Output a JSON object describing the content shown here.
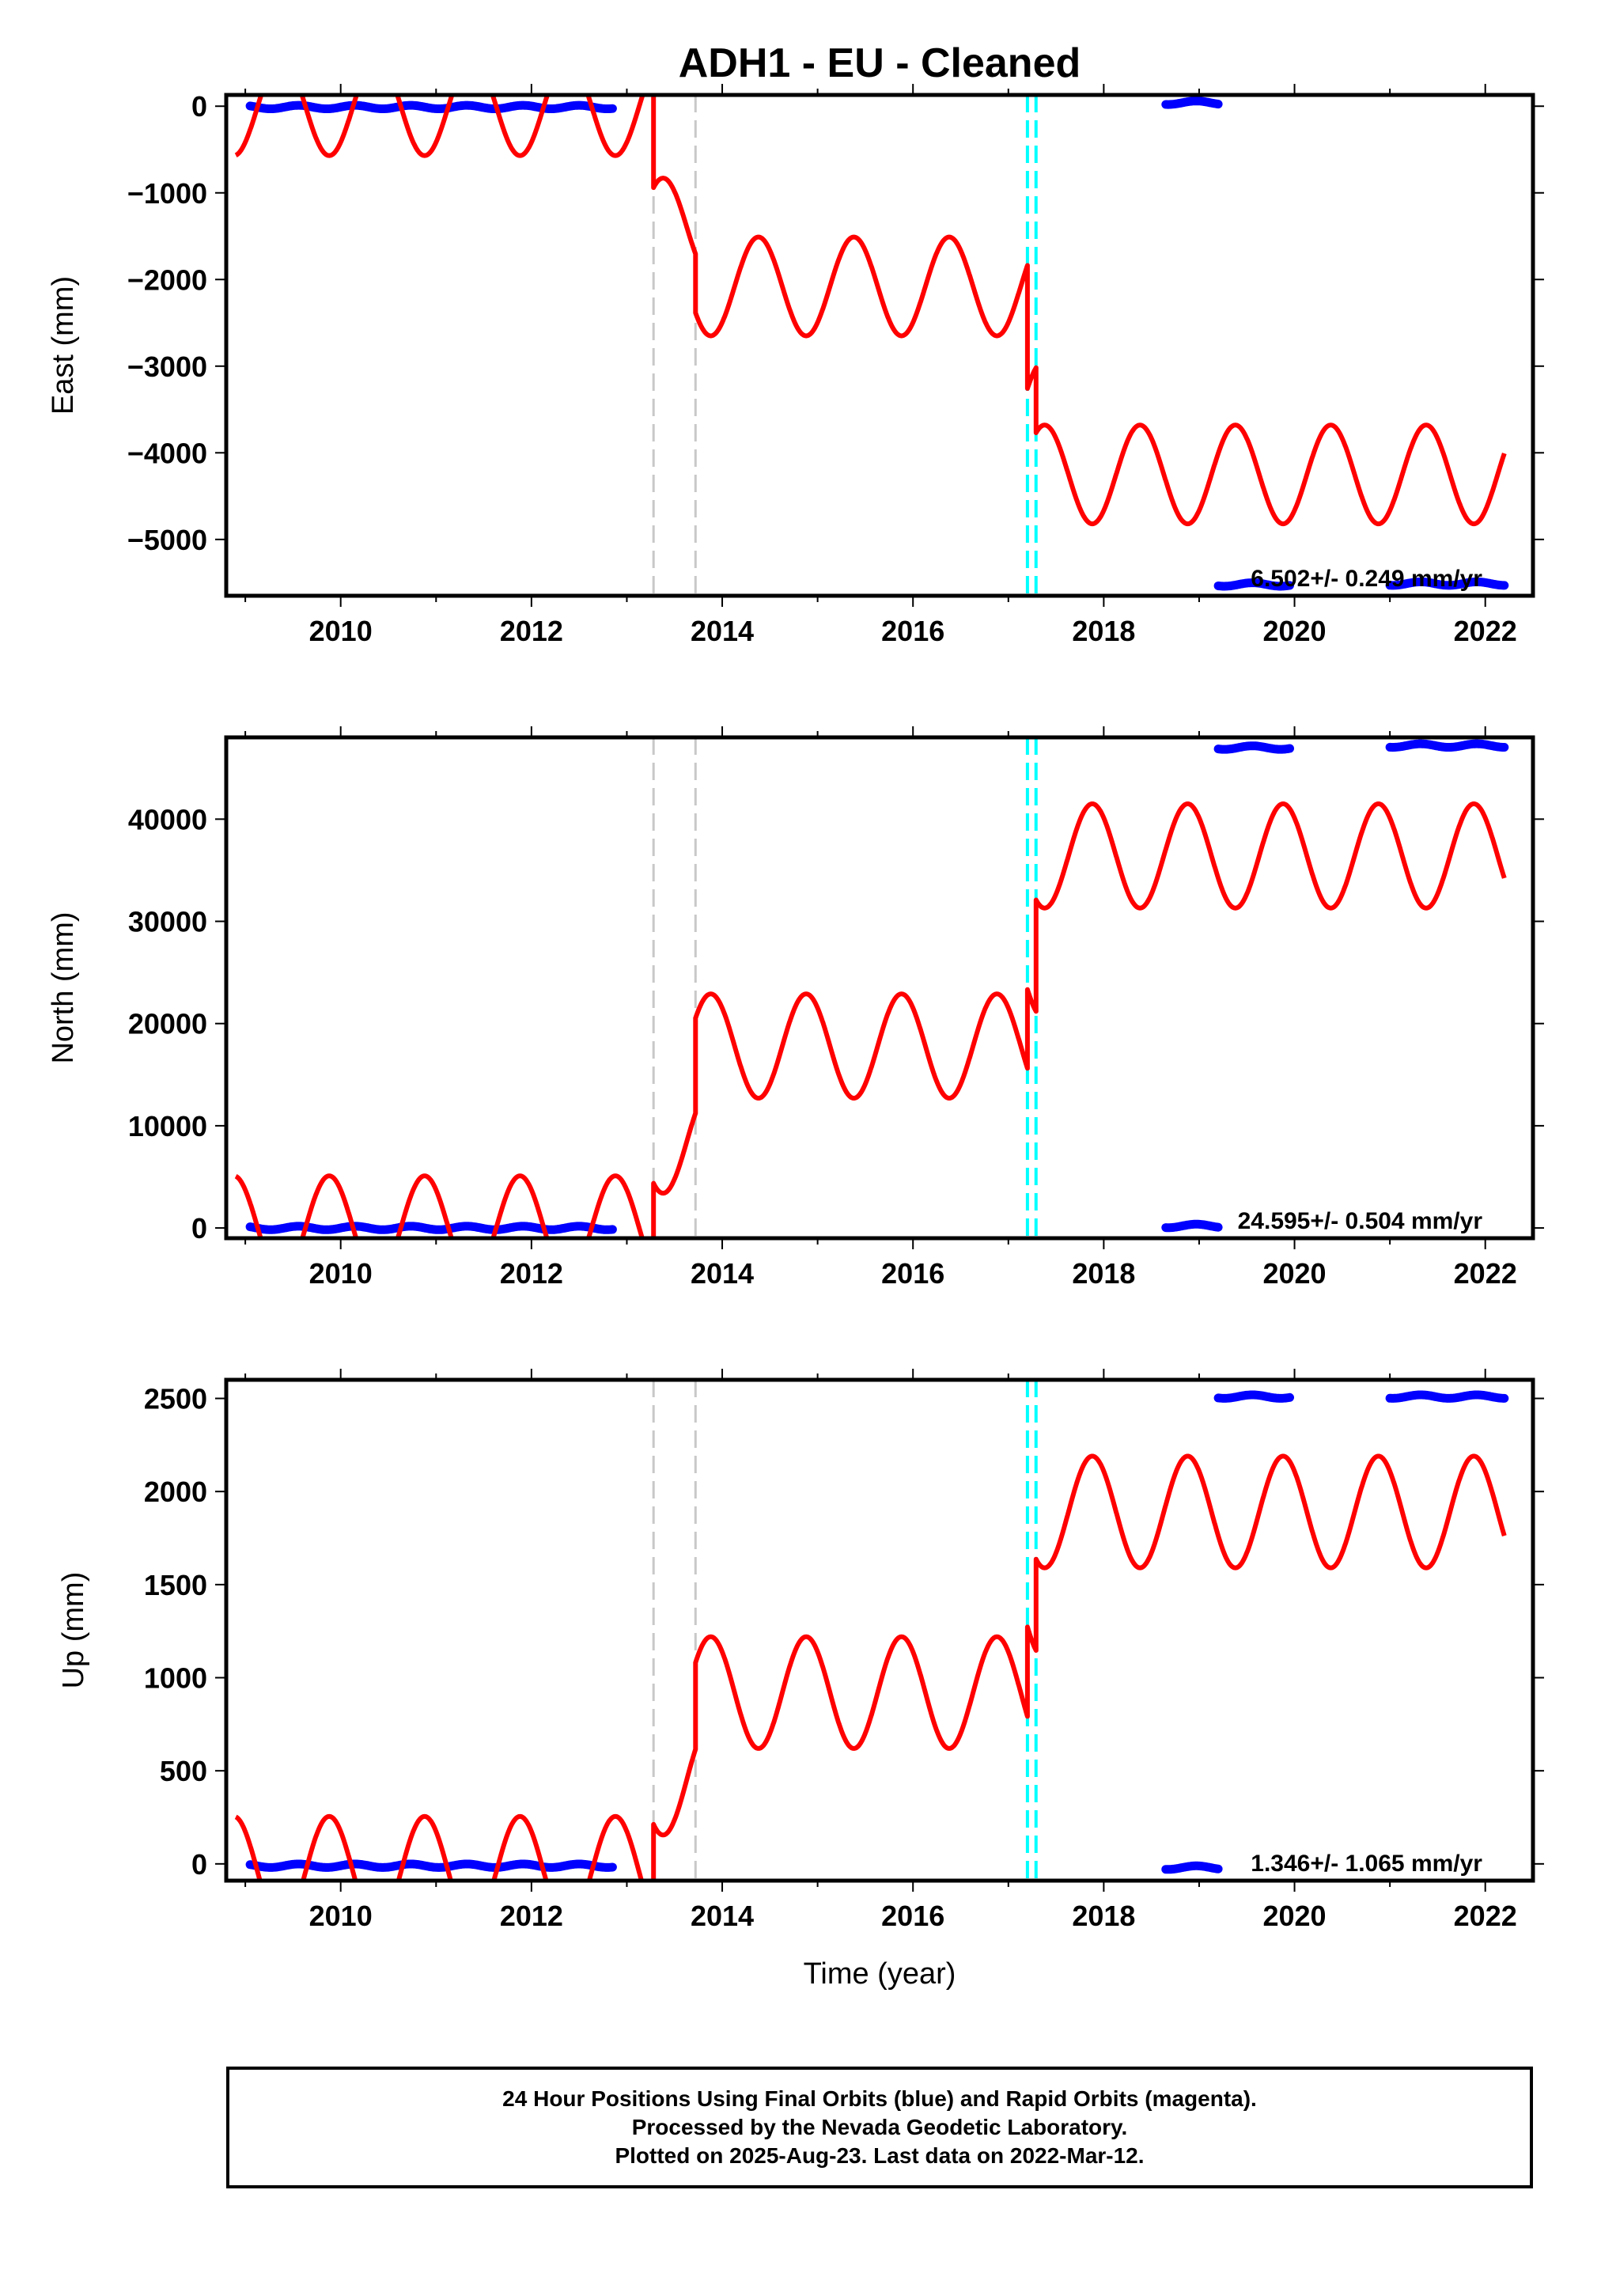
{
  "title": "ADH1  - EU - Cleaned",
  "colors": {
    "model": "#ff0000",
    "data": "#0000ff",
    "offset_equipment": "#c8c8c8",
    "offset_earthquake": "#00ffff",
    "frame": "#000000"
  },
  "footer": {
    "line1": "24 Hour Positions Using Final Orbits (blue) and Rapid Orbits (magenta).",
    "line2": "Processed by the Nevada Geodetic Laboratory.",
    "line3": "Plotted on 2025-Aug-23. Last data on 2022-Mar-12."
  },
  "chart_data": [
    {
      "type": "line",
      "panel": "east",
      "ylabel": "East (mm)",
      "xlabel": "",
      "xlim": [
        2008.8,
        2022.5
      ],
      "ylim": [
        -5650,
        130
      ],
      "xticks": [
        2010,
        2012,
        2014,
        2016,
        2018,
        2020,
        2022
      ],
      "yticks": [
        0,
        -1000,
        -2000,
        -3000,
        -4000,
        -5000
      ],
      "velocity_label": "6.502+/- 0.249 mm/yr",
      "offset_lines": [
        {
          "x": 2013.28,
          "kind": "equipment"
        },
        {
          "x": 2013.72,
          "kind": "equipment"
        },
        {
          "x": 2017.2,
          "kind": "earthquake"
        },
        {
          "x": 2017.29,
          "kind": "earthquake"
        }
      ],
      "data_segments": [
        {
          "x_start": 2009.05,
          "x_end": 2012.85,
          "y": -10
        },
        {
          "x_start": 2018.65,
          "x_end": 2019.2,
          "y": 40
        },
        {
          "x_start": 2019.2,
          "x_end": 2019.95,
          "y": -5520
        },
        {
          "x_start": 2021.0,
          "x_end": 2022.2,
          "y": -5510
        }
      ],
      "model": {
        "amplitude": 570,
        "phase": 0.38,
        "segments": [
          {
            "x_start": 2008.9,
            "x_end": 2013.28,
            "base": 0
          },
          {
            "x_start": 2013.28,
            "x_end": 2013.72,
            "base": -1400
          },
          {
            "x_start": 2013.72,
            "x_end": 2017.2,
            "base": -2080
          },
          {
            "x_start": 2017.2,
            "x_end": 2017.29,
            "base": -3500
          },
          {
            "x_start": 2017.29,
            "x_end": 2022.2,
            "base": -4250
          }
        ],
        "clip_max": 0
      }
    },
    {
      "type": "line",
      "panel": "north",
      "ylabel": "North (mm)",
      "xlabel": "",
      "xlim": [
        2008.8,
        2022.5
      ],
      "ylim": [
        -1000,
        48000
      ],
      "xticks": [
        2010,
        2012,
        2014,
        2016,
        2018,
        2020,
        2022
      ],
      "yticks": [
        0,
        10000,
        20000,
        30000,
        40000
      ],
      "velocity_label": "24.595+/- 0.504 mm/yr",
      "offset_lines": [
        {
          "x": 2013.28,
          "kind": "equipment"
        },
        {
          "x": 2013.72,
          "kind": "equipment"
        },
        {
          "x": 2017.2,
          "kind": "earthquake"
        },
        {
          "x": 2017.29,
          "kind": "earthquake"
        }
      ],
      "data_segments": [
        {
          "x_start": 2009.05,
          "x_end": 2012.85,
          "y": 0
        },
        {
          "x_start": 2018.65,
          "x_end": 2019.2,
          "y": 200
        },
        {
          "x_start": 2019.2,
          "x_end": 2019.95,
          "y": 47000
        },
        {
          "x_start": 2021.0,
          "x_end": 2022.2,
          "y": 47200
        }
      ],
      "model": {
        "amplitude": 5100,
        "phase": 0.88,
        "segments": [
          {
            "x_start": 2008.9,
            "x_end": 2013.28,
            "base": 0
          },
          {
            "x_start": 2013.28,
            "x_end": 2013.72,
            "base": 8500
          },
          {
            "x_start": 2013.72,
            "x_end": 2017.2,
            "base": 17800
          },
          {
            "x_start": 2017.2,
            "x_end": 2017.29,
            "base": 25500
          },
          {
            "x_start": 2017.29,
            "x_end": 2022.2,
            "base": 36400
          }
        ],
        "clip_min": 0
      }
    },
    {
      "type": "line",
      "panel": "up",
      "ylabel": "Up (mm)",
      "xlabel": "Time (year)",
      "xlim": [
        2008.8,
        2022.5
      ],
      "ylim": [
        -90,
        2600
      ],
      "xticks": [
        2010,
        2012,
        2014,
        2016,
        2018,
        2020,
        2022
      ],
      "yticks": [
        0,
        500,
        1000,
        1500,
        2000,
        2500
      ],
      "velocity_label": "1.346+/- 1.065 mm/yr",
      "offset_lines": [
        {
          "x": 2013.28,
          "kind": "equipment"
        },
        {
          "x": 2013.72,
          "kind": "equipment"
        },
        {
          "x": 2017.2,
          "kind": "earthquake"
        },
        {
          "x": 2017.29,
          "kind": "earthquake"
        }
      ],
      "data_segments": [
        {
          "x_start": 2009.05,
          "x_end": 2012.85,
          "y": -10
        },
        {
          "x_start": 2018.65,
          "x_end": 2019.2,
          "y": -20
        },
        {
          "x_start": 2019.2,
          "x_end": 2019.95,
          "y": 2510
        },
        {
          "x_start": 2021.0,
          "x_end": 2022.2,
          "y": 2510
        }
      ],
      "model": {
        "amplitude": 300,
        "phase": 0.88,
        "segments": [
          {
            "x_start": 2008.9,
            "x_end": 2013.28,
            "base": -45
          },
          {
            "x_start": 2013.28,
            "x_end": 2013.72,
            "base": 455
          },
          {
            "x_start": 2013.72,
            "x_end": 2017.2,
            "base": 920
          },
          {
            "x_start": 2017.2,
            "x_end": 2017.29,
            "base": 1400
          },
          {
            "x_start": 2017.29,
            "x_end": 2022.2,
            "base": 1890
          }
        ],
        "clip_min": 0
      }
    }
  ]
}
